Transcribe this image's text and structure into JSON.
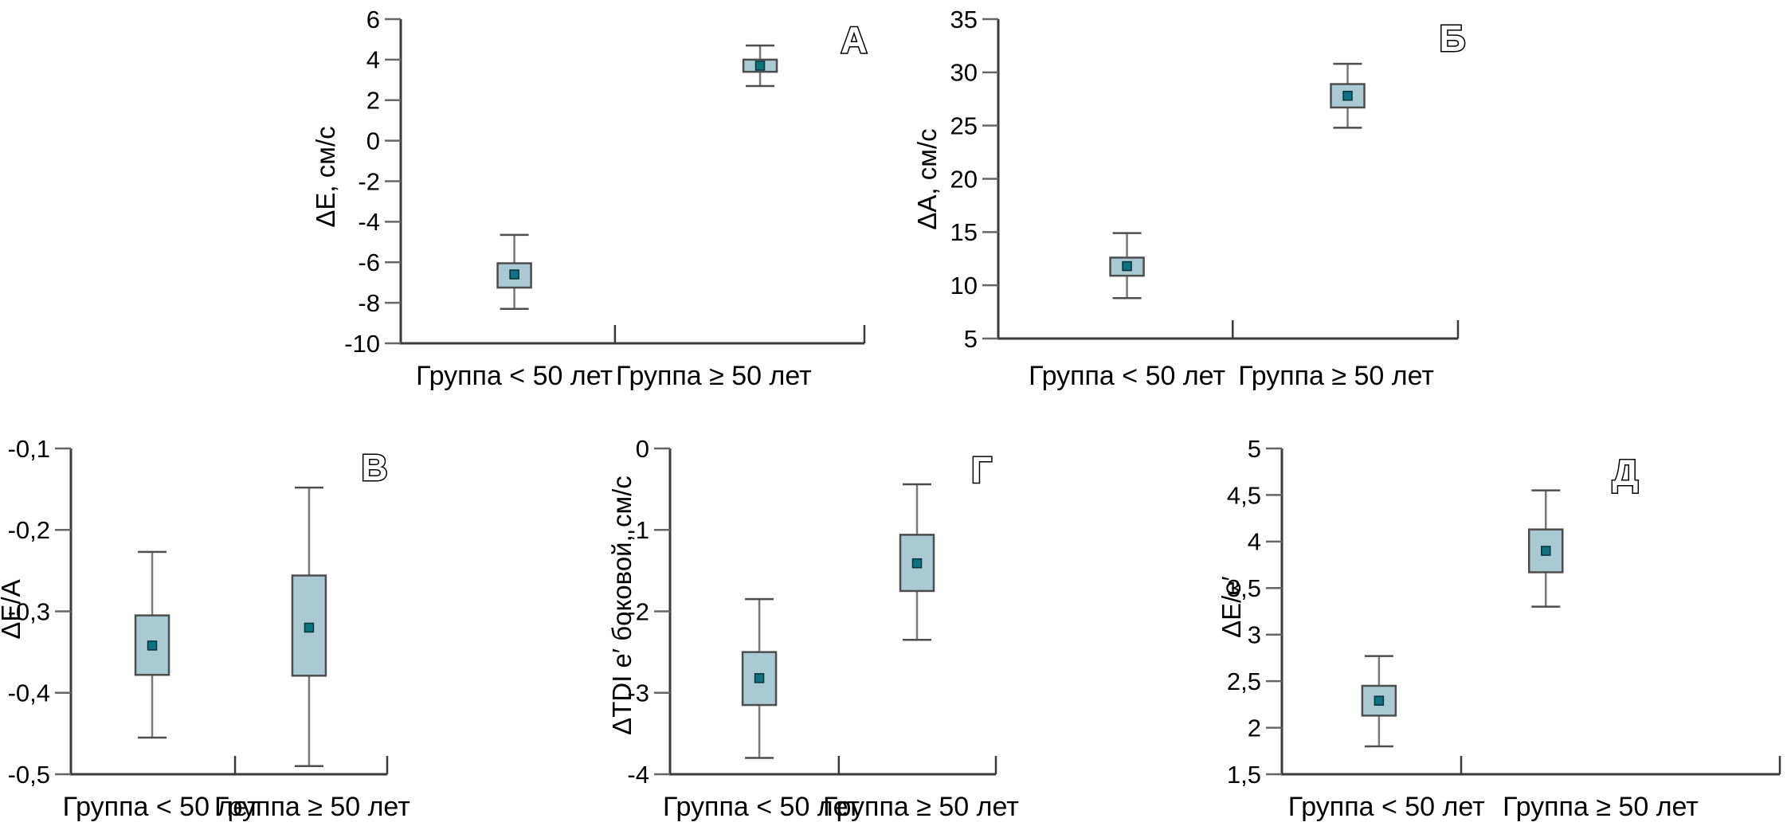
{
  "figure": {
    "background": "#ffffff",
    "box_fill": "#a9cad3",
    "box_stroke": "#4d4d4d",
    "whisker_stem_color": "#787878",
    "whisker_cap_color": "#4d4d4d",
    "axis_color": "#3a3a3a",
    "tick_color": "#666666",
    "mean_marker_fill": "#0f7280",
    "mean_marker_stroke": "#06333a"
  },
  "chart_data": [
    {
      "type": "box",
      "panel_letter": "А",
      "ylabel": "ΔE, см/с",
      "ylim": [
        -10,
        6
      ],
      "yticks": [
        6,
        4,
        2,
        0,
        -2,
        -4,
        -6,
        -8,
        -10
      ],
      "ytick_labels": [
        "6",
        "4",
        "2",
        "0",
        "-2",
        "-4",
        "-6",
        "-8",
        "-10"
      ],
      "categories": [
        "Группа < 50 лет",
        "Группа ≥ 50 лет"
      ],
      "legend": "none",
      "grid": false,
      "series": [
        {
          "category": "Группа < 50 лет",
          "whisker_low": -8.3,
          "q1": -7.25,
          "mean": -6.6,
          "q3": -6.05,
          "whisker_high": -4.65
        },
        {
          "category": "Группа ≥ 50 лет",
          "whisker_low": 2.7,
          "q1": 3.4,
          "mean": 3.7,
          "q3": 4.0,
          "whisker_high": 4.7
        }
      ]
    },
    {
      "type": "box",
      "panel_letter": "Б",
      "ylabel": "ΔA, см/с",
      "ylim": [
        5,
        35
      ],
      "yticks": [
        35,
        30,
        25,
        20,
        15,
        10,
        5
      ],
      "ytick_labels": [
        "35",
        "30",
        "25",
        "20",
        "15",
        "10",
        "5"
      ],
      "categories": [
        "Группа < 50 лет",
        "Группа ≥ 50 лет"
      ],
      "legend": "none",
      "grid": false,
      "series": [
        {
          "category": "Группа < 50 лет",
          "whisker_low": 8.8,
          "q1": 10.9,
          "mean": 11.8,
          "q3": 12.6,
          "whisker_high": 14.9
        },
        {
          "category": "Группа ≥ 50 лет",
          "whisker_low": 24.8,
          "q1": 26.7,
          "mean": 27.8,
          "q3": 28.9,
          "whisker_high": 30.8
        }
      ]
    },
    {
      "type": "box",
      "panel_letter": "В",
      "ylabel": "ΔE/A",
      "ylim": [
        -0.5,
        -0.1
      ],
      "yticks": [
        -0.1,
        -0.2,
        -0.3,
        -0.4,
        -0.5
      ],
      "ytick_labels": [
        "-0,1",
        "-0,2",
        "-0,3",
        "-0,4",
        "-0,5"
      ],
      "categories": [
        "Группа < 50 лет",
        "Группа ≥ 50 лет"
      ],
      "legend": "none",
      "grid": false,
      "series": [
        {
          "category": "Группа < 50 лет",
          "whisker_low": -0.455,
          "q1": -0.378,
          "mean": -0.342,
          "q3": -0.305,
          "whisker_high": -0.227
        },
        {
          "category": "Группа ≥ 50 лет",
          "whisker_low": -0.49,
          "q1": -0.379,
          "mean": -0.32,
          "q3": -0.256,
          "whisker_high": -0.148
        }
      ]
    },
    {
      "type": "box",
      "panel_letter": "Г",
      "ylabel": "ΔTDI e′ боковой, см/с",
      "ylim": [
        -4,
        0
      ],
      "yticks": [
        0,
        -1,
        -2,
        -3,
        -4
      ],
      "ytick_labels": [
        "0",
        "-1",
        "-2",
        "-3",
        "-4"
      ],
      "categories": [
        "Группа < 50 лет",
        "Группа ≥ 50 лет"
      ],
      "legend": "none",
      "grid": false,
      "series": [
        {
          "category": "Группа < 50 лет",
          "whisker_low": -3.8,
          "q1": -3.15,
          "mean": -2.82,
          "q3": -2.5,
          "whisker_high": -1.85
        },
        {
          "category": "Группа ≥ 50 лет",
          "whisker_low": -2.35,
          "q1": -1.75,
          "mean": -1.41,
          "q3": -1.06,
          "whisker_high": -0.44
        }
      ]
    },
    {
      "type": "box",
      "panel_letter": "Д",
      "ylabel": "ΔE/e′",
      "ylim": [
        1.5,
        5
      ],
      "yticks": [
        5,
        4.5,
        4,
        3.5,
        3,
        2.5,
        2,
        1.5
      ],
      "ytick_labels": [
        "5",
        "4,5",
        "4",
        "3,5",
        "3",
        "2,5",
        "2",
        "1,5"
      ],
      "categories": [
        "Группа < 50 лет",
        "Группа ≥ 50 лет"
      ],
      "legend": "none",
      "grid": false,
      "series": [
        {
          "category": "Группа < 50 лет",
          "whisker_low": 1.8,
          "q1": 2.13,
          "mean": 2.29,
          "q3": 2.45,
          "whisker_high": 2.77
        },
        {
          "category": "Группа ≥ 50 лет",
          "whisker_low": 3.3,
          "q1": 3.67,
          "mean": 3.9,
          "q3": 4.13,
          "whisker_high": 4.55
        }
      ]
    }
  ]
}
